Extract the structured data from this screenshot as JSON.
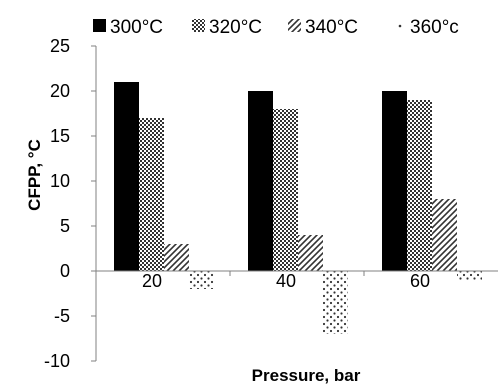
{
  "chart_data": {
    "type": "bar",
    "title": "",
    "xlabel": "Pressure, bar",
    "ylabel": "CFPP, °C",
    "categories": [
      "20",
      "40",
      "60"
    ],
    "ylim": [
      -10,
      25
    ],
    "yticks": [
      25,
      20,
      15,
      10,
      5,
      0,
      -5,
      -10
    ],
    "ytick_labels": [
      "25",
      "20",
      "15",
      "10",
      "5",
      "0",
      "-5",
      "-10"
    ],
    "grid": false,
    "legend_position": "top",
    "series": [
      {
        "name": "300°C",
        "pattern": "solid-black",
        "values": [
          21,
          20,
          20
        ]
      },
      {
        "name": "320°C",
        "pattern": "checker",
        "values": [
          17,
          18,
          19
        ]
      },
      {
        "name": "340°C",
        "pattern": "diagonal",
        "values": [
          3,
          4,
          8
        ]
      },
      {
        "name": "360°c",
        "pattern": "dots",
        "values": [
          -2,
          -7,
          -1
        ]
      }
    ]
  }
}
